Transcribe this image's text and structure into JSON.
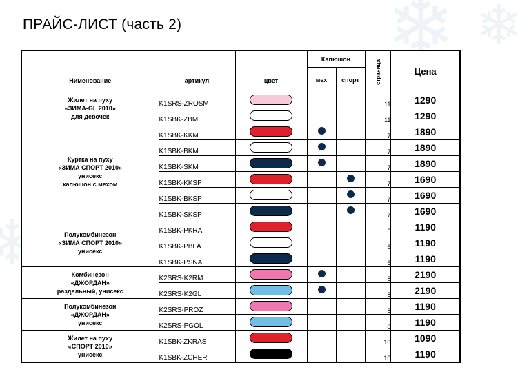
{
  "title": "ПРАЙС-ЛИСТ (часть 2)",
  "headers": {
    "name": "Нименование",
    "article": "артикул",
    "color": "цвет",
    "hood": "Капюшон",
    "fur": "мех",
    "sport": "спорт",
    "page": "страница",
    "price": "Цена"
  },
  "groups": [
    {
      "lines": [
        "Жилет на пуху",
        "«ЗИМА-GL 2010»",
        "для девочек"
      ],
      "items": [
        {
          "article": "K1SRS-ZROSM",
          "color": "#f8c9d8",
          "fur": false,
          "sport": false,
          "page": "11",
          "price": "1290"
        },
        {
          "article": "K1SBK-ZBM",
          "color": "#ffffff",
          "fur": false,
          "sport": false,
          "page": "11",
          "price": "1290"
        }
      ]
    },
    {
      "lines": [
        "Куртка на пуху",
        "«ЗИМА СПОРТ 2010»",
        "унисекс",
        "капюшон с мехом"
      ],
      "items": [
        {
          "article": "K1SBK-KKM",
          "color": "#e0202a",
          "fur": true,
          "sport": false,
          "page": "7",
          "price": "1890"
        },
        {
          "article": "K1SBK-BKM",
          "color": "#ffffff",
          "fur": true,
          "sport": false,
          "page": "7",
          "price": "1890"
        },
        {
          "article": "K1SBK-SKM",
          "color": "#0c2a4a",
          "fur": true,
          "sport": false,
          "page": "7",
          "price": "1890"
        },
        {
          "article": "K1SBK-KKSP",
          "color": "#e0202a",
          "fur": false,
          "sport": true,
          "page": "7",
          "price": "1690"
        },
        {
          "article": "K1SBK-BKSP",
          "color": "#ffffff",
          "fur": false,
          "sport": true,
          "page": "7",
          "price": "1690"
        },
        {
          "article": "K1SBK-SKSP",
          "color": "#0c2a4a",
          "fur": false,
          "sport": true,
          "page": "7",
          "price": "1690"
        }
      ]
    },
    {
      "lines": [
        "Полукомбинезон",
        "«ЗИМА СПОРТ 2010»",
        "унисекс"
      ],
      "items": [
        {
          "article": "K1SBK-PKRA",
          "color": "#e0202a",
          "fur": false,
          "sport": false,
          "page": "6",
          "price": "1190"
        },
        {
          "article": "K1SBK-PBLA",
          "color": "#ffffff",
          "fur": false,
          "sport": false,
          "page": "6",
          "price": "1190"
        },
        {
          "article": "K1SBK-PSNA",
          "color": "#0c2a4a",
          "fur": false,
          "sport": false,
          "page": "6",
          "price": "1190"
        }
      ]
    },
    {
      "lines": [
        "Комбинезон",
        "«ДЖОРДАН»",
        "раздельный, унисекс"
      ],
      "items": [
        {
          "article": "K2SRS-K2RM",
          "color": "#ee78ad",
          "fur": true,
          "sport": false,
          "page": "8",
          "price": "2190"
        },
        {
          "article": "K2SRS-K2GL",
          "color": "#72bde6",
          "fur": true,
          "sport": false,
          "page": "8",
          "price": "2190"
        }
      ]
    },
    {
      "lines": [
        "Полукомбинезон",
        "«ДЖОРДАН»",
        "унисекс"
      ],
      "items": [
        {
          "article": "K2SRS-PROZ",
          "color": "#ee78ad",
          "fur": false,
          "sport": false,
          "page": "8",
          "price": "1190"
        },
        {
          "article": "K2SRS-PGOL",
          "color": "#72bde6",
          "fur": false,
          "sport": false,
          "page": "8",
          "price": "1190"
        }
      ]
    },
    {
      "lines": [
        "Жилет на пуху",
        "«СПОРТ 2010»",
        "унисекс"
      ],
      "items": [
        {
          "article": "K1SBK-ZKRAS",
          "color": "#e0202a",
          "fur": false,
          "sport": false,
          "page": "10",
          "price": "1090"
        },
        {
          "article": "K1SBK-ZCHER",
          "color": "#000000",
          "fur": false,
          "sport": false,
          "page": "10",
          "price": "1190"
        }
      ]
    }
  ]
}
